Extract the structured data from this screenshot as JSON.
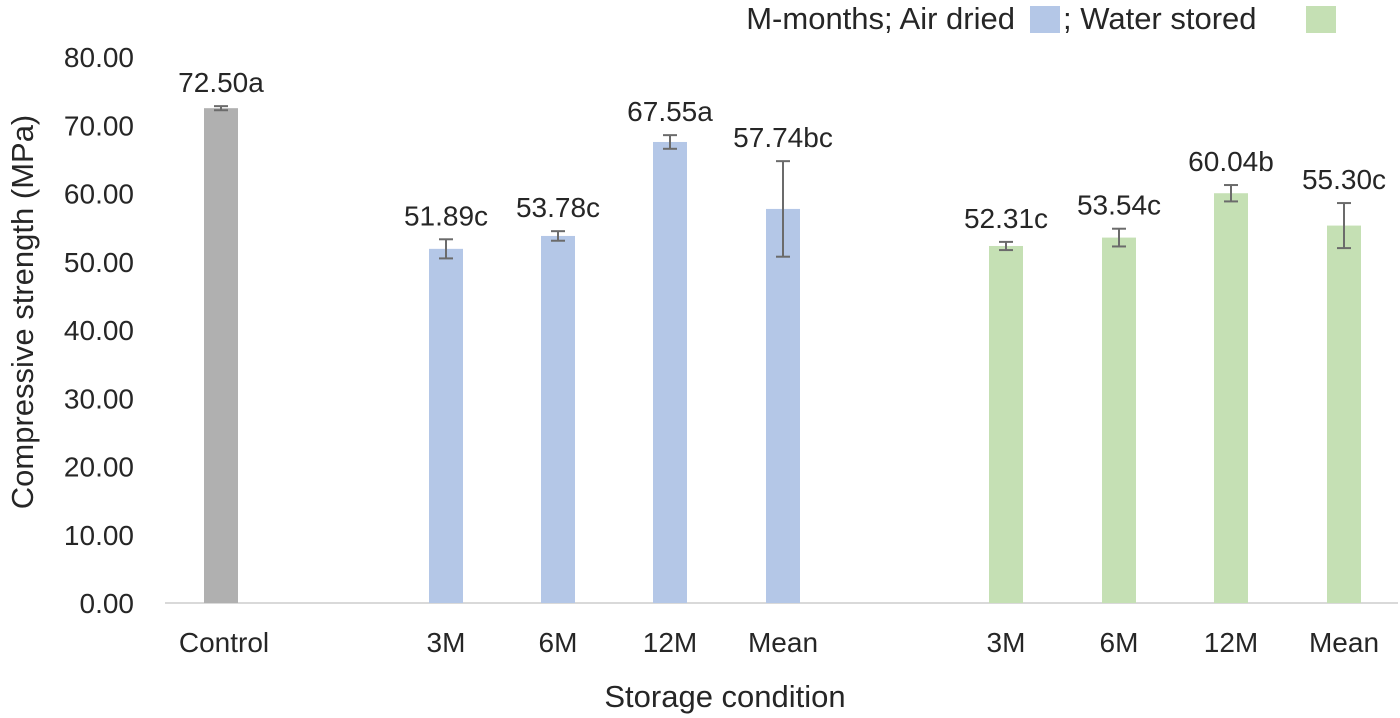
{
  "chart_data": {
    "type": "bar",
    "title": "",
    "xlabel": "Storage condition",
    "ylabel": "Compressive strength (MPa)",
    "ylim": [
      0,
      80
    ],
    "y_ticks": [
      "0.00",
      "10.00",
      "20.00",
      "30.00",
      "40.00",
      "50.00",
      "60.00",
      "70.00",
      "80.00"
    ],
    "y_tick_values": [
      0,
      10,
      20,
      30,
      40,
      50,
      60,
      70,
      80
    ],
    "grid": false,
    "legend": {
      "position": "top-right",
      "prefix": "M-months; Air dried",
      "sep": "; Water stored",
      "entries": [
        {
          "name": "Air dried",
          "color": "#b4c7e7"
        },
        {
          "name": "Water stored",
          "color": "#c5e0b4"
        }
      ]
    },
    "bars": [
      {
        "category": "Control",
        "value": 72.5,
        "label": "72.50a",
        "error": 0.3,
        "group": "Control",
        "color": "#b0b0b0"
      },
      {
        "category": "3M",
        "value": 51.89,
        "label": "51.89c",
        "error": 1.4,
        "group": "Air dried",
        "color": "#b4c7e7"
      },
      {
        "category": "6M",
        "value": 53.78,
        "label": "53.78c",
        "error": 0.7,
        "group": "Air dried",
        "color": "#b4c7e7"
      },
      {
        "category": "12M",
        "value": 67.55,
        "label": "67.55a",
        "error": 1.0,
        "group": "Air dried",
        "color": "#b4c7e7"
      },
      {
        "category": "Mean",
        "value": 57.74,
        "label": "57.74bc",
        "error": 7.0,
        "group": "Air dried",
        "color": "#b4c7e7"
      },
      {
        "category": "3M",
        "value": 52.31,
        "label": "52.31c",
        "error": 0.6,
        "group": "Water stored",
        "color": "#c5e0b4"
      },
      {
        "category": "6M",
        "value": 53.54,
        "label": "53.54c",
        "error": 1.3,
        "group": "Water stored",
        "color": "#c5e0b4"
      },
      {
        "category": "12M",
        "value": 60.04,
        "label": "60.04b",
        "error": 1.2,
        "group": "Water stored",
        "color": "#c5e0b4"
      },
      {
        "category": "Mean",
        "value": 55.3,
        "label": "55.30c",
        "error": 3.3,
        "group": "Water stored",
        "color": "#c5e0b4"
      }
    ],
    "colors": {
      "axis": "#d9d9d9",
      "error_bar": "#6b6b6b",
      "text": "#262626"
    }
  }
}
